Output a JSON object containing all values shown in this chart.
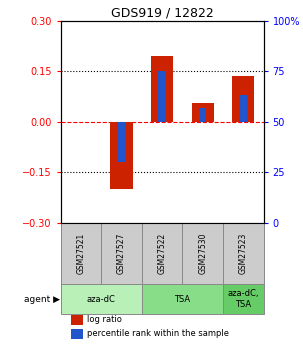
{
  "title": "GDS919 / 12822",
  "samples": [
    "GSM27521",
    "GSM27527",
    "GSM27522",
    "GSM27530",
    "GSM27523"
  ],
  "log_ratios": [
    0.0,
    -0.2,
    0.195,
    0.055,
    0.135
  ],
  "percentile_ranks": [
    50,
    30,
    75,
    57,
    63
  ],
  "agent_groups": [
    {
      "label": "aza-dC",
      "span": [
        0,
        2
      ],
      "color": "#b8f0b8"
    },
    {
      "label": "TSA",
      "span": [
        2,
        4
      ],
      "color": "#88dd88"
    },
    {
      "label": "aza-dC,\nTSA",
      "span": [
        4,
        5
      ],
      "color": "#66cc66"
    }
  ],
  "left_ylim": [
    -0.3,
    0.3
  ],
  "right_ylim": [
    0,
    100
  ],
  "left_yticks": [
    -0.3,
    -0.15,
    0.0,
    0.15,
    0.3
  ],
  "right_yticks": [
    0,
    25,
    50,
    75,
    100
  ],
  "right_yticklabels": [
    "0",
    "25",
    "50",
    "75",
    "100%"
  ],
  "hlines": [
    0.15,
    0.0,
    -0.15
  ],
  "hline_styles": [
    "dotted",
    "dashed",
    "dotted"
  ],
  "hline_colors": [
    "black",
    "red",
    "black"
  ],
  "bar_width": 0.55,
  "percentile_bar_width": 0.18,
  "bar_color": "#cc2200",
  "percentile_color": "#2255cc",
  "background_color": "#ffffff",
  "agent_label": "agent",
  "legend_items": [
    "log ratio",
    "percentile rank within the sample"
  ],
  "sample_cell_color": "#cccccc"
}
